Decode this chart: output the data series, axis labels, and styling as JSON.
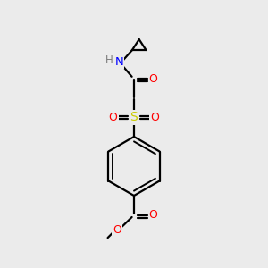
{
  "bg_color": "#ebebeb",
  "bond_color": "#000000",
  "atom_colors": {
    "O": "#ff0000",
    "S": "#cccc00",
    "N": "#0000ff",
    "H": "#7a7a7a",
    "C": "#000000"
  },
  "figsize": [
    3.0,
    3.0
  ],
  "dpi": 100
}
